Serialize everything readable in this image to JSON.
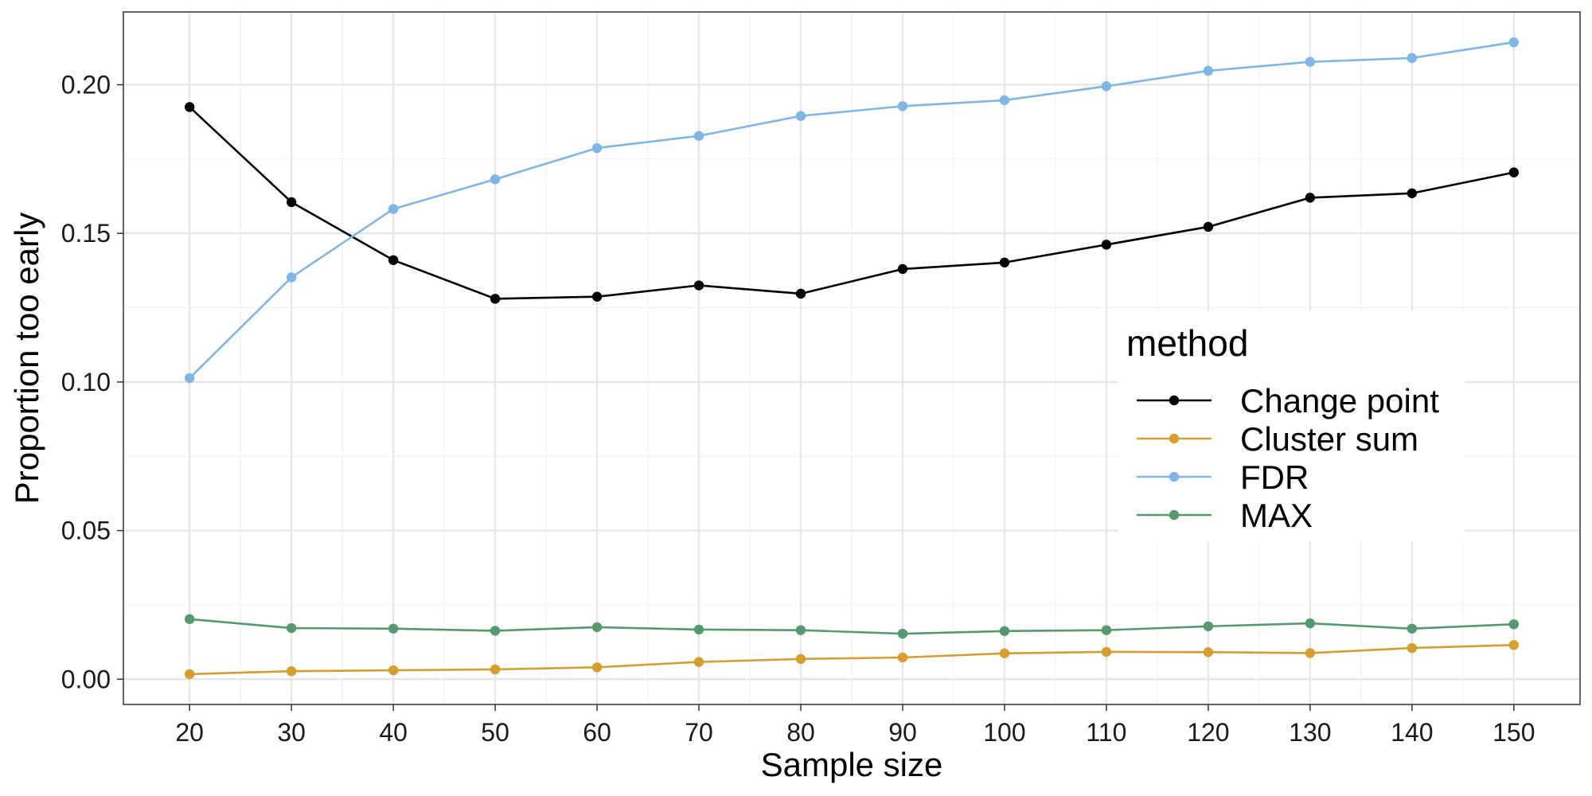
{
  "chart_data": {
    "type": "line",
    "xlabel": "Sample size",
    "ylabel": "Proportion too early",
    "x": [
      20,
      30,
      40,
      50,
      60,
      70,
      80,
      90,
      100,
      110,
      120,
      130,
      140,
      150
    ],
    "xlim": [
      13.5,
      156.5
    ],
    "xticks": [
      20,
      30,
      40,
      50,
      60,
      70,
      80,
      90,
      100,
      110,
      120,
      130,
      140,
      150
    ],
    "ylim": [
      -0.0085,
      0.2245
    ],
    "yticks": [
      0.0,
      0.05,
      0.1,
      0.15,
      0.2
    ],
    "ytick_labels": [
      "0.00",
      "0.05",
      "0.10",
      "0.15",
      "0.20"
    ],
    "grid": true,
    "legend_title": "method",
    "legend_position": "right-center inside",
    "series": [
      {
        "name": "Change point",
        "color": "#000000",
        "values": [
          0.1925,
          0.1605,
          0.141,
          0.128,
          0.1287,
          0.1325,
          0.1297,
          0.138,
          0.1402,
          0.1462,
          0.1522,
          0.162,
          0.1635,
          0.1705
        ]
      },
      {
        "name": "Cluster sum",
        "color": "#d69e2e",
        "values": [
          0.0017,
          0.0027,
          0.003,
          0.0033,
          0.004,
          0.0058,
          0.0068,
          0.0073,
          0.0087,
          0.0092,
          0.0091,
          0.0088,
          0.0105,
          0.0115
        ]
      },
      {
        "name": "FDR",
        "color": "#7fb6e6",
        "values": [
          0.1013,
          0.1352,
          0.1582,
          0.1682,
          0.1787,
          0.1828,
          0.1895,
          0.1928,
          0.1948,
          0.1995,
          0.2047,
          0.2077,
          0.209,
          0.2143
        ]
      },
      {
        "name": "MAX",
        "color": "#55996f",
        "values": [
          0.0202,
          0.0172,
          0.017,
          0.0163,
          0.0175,
          0.0167,
          0.0165,
          0.0153,
          0.0162,
          0.0165,
          0.0178,
          0.0188,
          0.017,
          0.0185
        ]
      }
    ]
  }
}
